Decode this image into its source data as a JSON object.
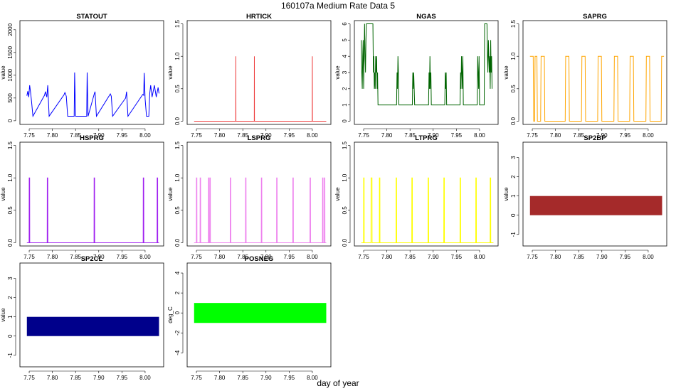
{
  "figure": {
    "title": "160107a   Medium Rate Data 5",
    "xlabel": "day of year"
  },
  "chart_data": [
    {
      "type": "line",
      "title": "STATOUT",
      "ylabel": "value",
      "color": "#0000ff",
      "xlim": [
        7.73,
        8.04
      ],
      "ylim": [
        -80,
        2200
      ],
      "xticks": [
        "7.75",
        "7.80",
        "7.85",
        "7.90",
        "7.95",
        "8.00"
      ],
      "yticks": [
        "0",
        "500",
        "1000",
        "1500",
        "2000"
      ],
      "x": [
        7.745,
        7.747,
        7.749,
        7.751,
        7.753,
        7.755,
        7.758,
        7.783,
        7.785,
        7.788,
        7.79,
        7.793,
        7.825,
        7.827,
        7.83,
        7.833,
        7.847,
        7.848,
        7.85,
        7.874,
        7.875,
        7.877,
        7.89,
        7.892,
        7.895,
        7.925,
        7.927,
        7.93,
        7.958,
        7.96,
        7.963,
        7.995,
        7.997,
        7.998,
        8.0,
        8.003,
        8.008,
        8.01,
        8.012,
        8.015,
        8.02,
        8.024,
        8.028,
        8.03
      ],
      "y": [
        550,
        650,
        520,
        780,
        620,
        430,
        100,
        560,
        640,
        520,
        780,
        100,
        570,
        620,
        540,
        100,
        100,
        1060,
        100,
        100,
        1060,
        100,
        580,
        640,
        100,
        590,
        540,
        100,
        500,
        640,
        100,
        580,
        560,
        1050,
        480,
        100,
        100,
        600,
        780,
        520,
        780,
        520,
        730,
        600
      ]
    },
    {
      "type": "line",
      "title": "HRTICK",
      "ylabel": "value",
      "color": "#ee3b3b",
      "xlim": [
        7.73,
        8.04
      ],
      "ylim": [
        -0.05,
        1.55
      ],
      "xticks": [
        "7.75",
        "7.80",
        "7.85",
        "7.90",
        "7.95",
        "8.00"
      ],
      "yticks": [
        "0.0",
        "0.5",
        "1.0",
        "1.5"
      ],
      "x": [
        7.745,
        7.8348,
        7.835,
        7.8352,
        7.8748,
        7.875,
        7.8752,
        7.9998,
        8.0,
        8.0002,
        8.03
      ],
      "y": [
        0,
        0,
        1,
        0,
        0,
        1,
        0,
        0,
        1,
        0,
        0
      ]
    },
    {
      "type": "line",
      "title": "NGAS",
      "ylabel": "value",
      "color": "#006400",
      "xlim": [
        7.73,
        8.04
      ],
      "ylim": [
        -0.2,
        6.2
      ],
      "xticks": [
        "7.75",
        "7.80",
        "7.85",
        "7.90",
        "7.95",
        "8.00"
      ],
      "yticks": [
        "0",
        "1",
        "2",
        "3",
        "4",
        "5",
        "6"
      ],
      "x": [
        7.745,
        7.746,
        7.747,
        7.748,
        7.749,
        7.75,
        7.751,
        7.752,
        7.753,
        7.754,
        7.755,
        7.756,
        7.757,
        7.77,
        7.771,
        7.772,
        7.773,
        7.774,
        7.775,
        7.776,
        7.777,
        7.778,
        7.779,
        7.78,
        7.781,
        7.79,
        7.821,
        7.822,
        7.823,
        7.824,
        7.825,
        7.826,
        7.827,
        7.835,
        7.855,
        7.856,
        7.857,
        7.858,
        7.859,
        7.86,
        7.87,
        7.89,
        7.891,
        7.892,
        7.893,
        7.894,
        7.895,
        7.896,
        7.91,
        7.925,
        7.926,
        7.927,
        7.928,
        7.929,
        7.94,
        7.958,
        7.959,
        7.96,
        7.961,
        7.962,
        7.963,
        7.964,
        7.965,
        7.975,
        7.995,
        7.996,
        7.997,
        7.998,
        7.999,
        8.0,
        8.01,
        8.011,
        8.016,
        8.017,
        8.018,
        8.019,
        8.02,
        8.021,
        8.022,
        8.023,
        8.024,
        8.025,
        8.026,
        8.027
      ],
      "y": [
        5,
        3,
        2,
        4,
        5,
        2,
        4,
        6,
        4,
        3,
        5,
        6,
        6,
        6,
        3,
        4,
        2,
        3,
        2,
        4,
        3,
        4,
        2,
        3,
        1,
        1,
        1,
        3,
        2,
        4,
        3,
        1,
        1,
        1,
        1,
        3,
        2,
        3,
        2,
        1,
        1,
        1,
        3,
        2,
        4,
        2,
        3,
        1,
        1,
        1,
        3,
        2,
        3,
        1,
        1,
        1,
        3,
        2,
        4,
        3,
        2,
        4,
        1,
        1,
        1,
        4,
        3,
        2,
        4,
        1,
        1,
        6,
        6,
        4,
        3,
        5,
        4,
        3,
        4,
        2,
        5,
        3,
        4,
        2
      ]
    },
    {
      "type": "line",
      "title": "SAPRG",
      "ylabel": "value",
      "color": "#ffa500",
      "xlim": [
        7.73,
        8.04
      ],
      "ylim": [
        -0.05,
        1.55
      ],
      "xticks": [
        "7.75",
        "7.80",
        "7.85",
        "7.90",
        "7.95",
        "8.00"
      ],
      "yticks": [
        "0.0",
        "0.5",
        "1.0",
        "1.5"
      ],
      "x": [
        7.745,
        7.752,
        7.753,
        7.755,
        7.756,
        7.76,
        7.761,
        7.768,
        7.769,
        7.776,
        7.777,
        7.821,
        7.822,
        7.829,
        7.83,
        7.856,
        7.857,
        7.864,
        7.865,
        7.891,
        7.892,
        7.899,
        7.9,
        7.926,
        7.927,
        7.934,
        7.935,
        7.96,
        7.961,
        7.968,
        7.969,
        7.995,
        7.996,
        8.003,
        8.004,
        8.028,
        8.029,
        8.034
      ],
      "y": [
        1,
        1,
        0,
        0,
        1,
        1,
        0,
        0,
        1,
        1,
        0,
        0,
        1,
        1,
        0,
        0,
        1,
        1,
        0,
        0,
        1,
        1,
        0,
        0,
        1,
        1,
        0,
        0,
        1,
        1,
        0,
        0,
        1,
        1,
        0,
        0,
        1,
        1
      ]
    },
    {
      "type": "line",
      "title": "HSPRG",
      "ylabel": "value",
      "color": "#a020f0",
      "xlim": [
        7.73,
        8.04
      ],
      "ylim": [
        -0.05,
        1.55
      ],
      "xticks": [
        "7.75",
        "7.80",
        "7.85",
        "7.90",
        "7.95",
        "8.00"
      ],
      "yticks": [
        "0.0",
        "0.5",
        "1.0",
        "1.5"
      ],
      "x": [
        7.745,
        7.7498,
        7.75,
        7.751,
        7.7512,
        7.7888,
        7.789,
        7.79,
        7.7902,
        7.8898,
        7.89,
        7.891,
        7.8912,
        7.9958,
        7.996,
        7.997,
        7.9972,
        8.0258,
        8.026,
        8.027,
        8.0272,
        8.03
      ],
      "y": [
        0,
        0,
        1,
        1,
        0,
        0,
        1,
        1,
        0,
        0,
        1,
        1,
        0,
        0,
        1,
        1,
        0,
        0,
        1,
        1,
        0,
        0
      ]
    },
    {
      "type": "line",
      "title": "LSPRG",
      "ylabel": "value",
      "color": "#ee82ee",
      "xlim": [
        7.73,
        8.04
      ],
      "ylim": [
        -0.05,
        1.55
      ],
      "xticks": [
        "7.75",
        "7.80",
        "7.85",
        "7.90",
        "7.95",
        "8.00"
      ],
      "yticks": [
        "0.0",
        "0.5",
        "1.0",
        "1.5"
      ],
      "x": [
        7.745,
        7.7498,
        7.75,
        7.751,
        7.7512,
        7.7578,
        7.758,
        7.759,
        7.7592,
        7.7758,
        7.776,
        7.777,
        7.7772,
        7.7788,
        7.779,
        7.78,
        7.7802,
        7.8228,
        7.823,
        7.824,
        7.8242,
        7.8558,
        7.856,
        7.857,
        7.8572,
        7.8898,
        7.89,
        7.891,
        7.8912,
        7.9228,
        7.923,
        7.924,
        7.9242,
        7.9578,
        7.958,
        7.959,
        7.9592,
        7.9948,
        7.995,
        7.996,
        7.9962,
        8.0218,
        8.022,
        8.023,
        8.0232,
        8.0258,
        8.026,
        8.027,
        8.0272,
        8.03
      ],
      "y": [
        0,
        0,
        1,
        1,
        0,
        0,
        1,
        1,
        0,
        0,
        1,
        1,
        0,
        0,
        1,
        1,
        0,
        0,
        1,
        1,
        0,
        0,
        1,
        1,
        0,
        0,
        1,
        1,
        0,
        0,
        1,
        1,
        0,
        0,
        1,
        1,
        0,
        0,
        1,
        1,
        0,
        0,
        1,
        1,
        0,
        0,
        1,
        1,
        0,
        0
      ]
    },
    {
      "type": "line",
      "title": "LTPRG",
      "ylabel": "value",
      "color": "#ffff00",
      "xlim": [
        7.73,
        8.04
      ],
      "ylim": [
        -0.05,
        1.55
      ],
      "xticks": [
        "7.75",
        "7.80",
        "7.85",
        "7.90",
        "7.95",
        "8.00"
      ],
      "yticks": [
        "0.0",
        "0.5",
        "1.0",
        "1.5"
      ],
      "x": [
        7.745,
        7.7498,
        7.75,
        7.751,
        7.7512,
        7.7658,
        7.766,
        7.768,
        7.7682,
        7.7838,
        7.784,
        7.785,
        7.7852,
        7.8198,
        7.82,
        7.821,
        7.8212,
        7.8538,
        7.854,
        7.855,
        7.8552,
        7.8888,
        7.889,
        7.89,
        7.8902,
        7.9228,
        7.923,
        7.924,
        7.9242,
        7.9578,
        7.958,
        7.959,
        7.9592,
        7.9918,
        7.992,
        7.993,
        7.9932,
        8.0228,
        8.023,
        8.024,
        8.0242,
        8.03
      ],
      "y": [
        0,
        0,
        1,
        1,
        0,
        0,
        1,
        1,
        0,
        0,
        1,
        1,
        0,
        0,
        1,
        1,
        0,
        0,
        1,
        1,
        0,
        0,
        1,
        1,
        0,
        0,
        1,
        1,
        0,
        0,
        1,
        1,
        0,
        0,
        1,
        1,
        0,
        0,
        1,
        1,
        0,
        0
      ]
    },
    {
      "type": "area",
      "title": "SP2BP",
      "ylabel": "value",
      "color": "#a52a2a",
      "xlim": [
        7.73,
        8.04
      ],
      "ylim": [
        -1.6,
        3.8
      ],
      "xticks": [
        "7.75",
        "7.80",
        "7.85",
        "7.90",
        "7.95",
        "8.00"
      ],
      "yticks": [
        "-1",
        "0",
        "1",
        "2",
        "3"
      ],
      "x": [
        7.745,
        8.03
      ],
      "ymin": 0,
      "ymax": 1
    },
    {
      "type": "area",
      "title": "SP2CL",
      "ylabel": "value",
      "color": "#00008b",
      "xlim": [
        7.73,
        8.04
      ],
      "ylim": [
        -1.6,
        3.8
      ],
      "xticks": [
        "7.75",
        "7.80",
        "7.85",
        "7.90",
        "7.95",
        "8.00"
      ],
      "yticks": [
        "-1",
        "0",
        "1",
        "2",
        "3"
      ],
      "x": [
        7.745,
        8.03
      ],
      "ymin": 0,
      "ymax": 1
    },
    {
      "type": "area",
      "title": "POSNEG",
      "ylabel": "deg_C",
      "color": "#00ff00",
      "xlim": [
        7.73,
        8.04
      ],
      "ylim": [
        -5.4,
        5.0
      ],
      "xticks": [
        "7.75",
        "7.80",
        "7.85",
        "7.90",
        "7.95",
        "8.00"
      ],
      "yticks": [
        "-4",
        "-2",
        "0",
        "2",
        "4"
      ],
      "x": [
        7.745,
        8.03
      ],
      "ymin": -1,
      "ymax": 1
    }
  ]
}
